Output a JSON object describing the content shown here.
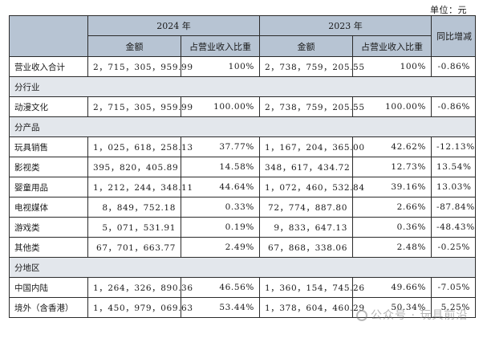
{
  "unit_label": "单位：元",
  "header": {
    "year_2024": "2024 年",
    "year_2023": "2023 年",
    "yoy": "同比增减",
    "amount": "金额",
    "ratio": "占营业收入比重"
  },
  "rows": [
    {
      "label": "营业收入合计",
      "amount_2024": "2，715，305，959.99",
      "ratio_2024": "100%",
      "amount_2023": "2，738，759，205.55",
      "ratio_2023": "100%",
      "yoy": "-0.86%"
    },
    {
      "label": "分行业"
    },
    {
      "label": "动漫文化",
      "amount_2024": "2，715，305，959.99",
      "ratio_2024": "100.00%",
      "amount_2023": "2，738，759，205.55",
      "ratio_2023": "100.00%",
      "yoy": "-0.86%"
    },
    {
      "label": "分产品"
    },
    {
      "label": "玩具销售",
      "amount_2024": "1，025，618，258.13",
      "ratio_2024": "37.77%",
      "amount_2023": "1，167，204，365.00",
      "ratio_2023": "42.62%",
      "yoy": "-12.13%"
    },
    {
      "label": "影视类",
      "amount_2024": "395，820，405.89",
      "ratio_2024": "14.58%",
      "amount_2023": "348，617，434.72",
      "ratio_2023": "12.73%",
      "yoy": "13.54%"
    },
    {
      "label": "婴童用品",
      "amount_2024": "1，212，244，348.11",
      "ratio_2024": "44.64%",
      "amount_2023": "1，072，460，532.84",
      "ratio_2023": "39.16%",
      "yoy": "13.03%"
    },
    {
      "label": "电视媒体",
      "amount_2024": "8，849，752.18",
      "ratio_2024": "0.33%",
      "amount_2023": "72，774，887.80",
      "ratio_2023": "2.66%",
      "yoy": "-87.84%"
    },
    {
      "label": "游戏类",
      "amount_2024": "5，071，531.91",
      "ratio_2024": "0.19%",
      "amount_2023": "9，833，647.13",
      "ratio_2023": "0.36%",
      "yoy": "-48.43%"
    },
    {
      "label": "其他类",
      "amount_2024": "67，701，663.77",
      "ratio_2024": "2.49%",
      "amount_2023": "67，868，338.06",
      "ratio_2023": "2.48%",
      "yoy": "-0.25%"
    },
    {
      "label": "分地区"
    },
    {
      "label": "中国内陆",
      "amount_2024": "1，264，326，890.36",
      "ratio_2024": "46.56%",
      "amount_2023": "1，360，154，745.26",
      "ratio_2023": "49.66%",
      "yoy": "-7.05%"
    },
    {
      "label": "境外（含香港）",
      "amount_2024": "1，450，979，069.63",
      "ratio_2024": "53.44%",
      "amount_2023": "1，378，604，460.29",
      "ratio_2023": "50.34%",
      "yoy": "5.25%"
    }
  ],
  "watermark": "公众号 · 玩具前沿",
  "colors": {
    "header_bg": "#b7c4d3",
    "section_bg": "#e3e7ec",
    "border": "#2b2b2b"
  }
}
